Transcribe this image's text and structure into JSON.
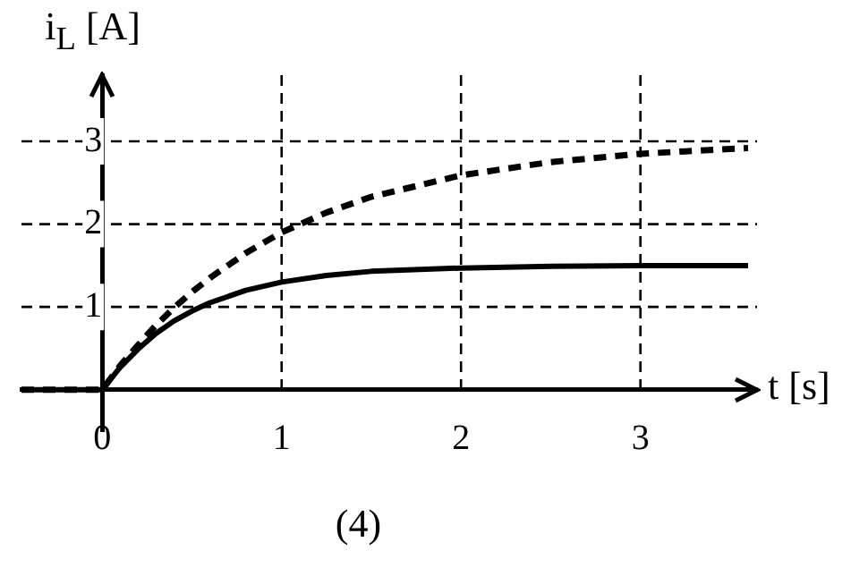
{
  "chart_data": {
    "type": "line",
    "xlabel": "t [s]",
    "ylabel": "i$_{L}$ [A]",
    "annotations": [
      "(4)"
    ],
    "x": [
      -0.45,
      0,
      0.1,
      0.2,
      0.3,
      0.4,
      0.5,
      0.6,
      0.8,
      1,
      1.25,
      1.5,
      2,
      2.5,
      3,
      3.6
    ],
    "series": [
      {
        "color": "#000000",
        "line_style": "solid",
        "values": [
          0,
          0,
          0.27,
          0.49,
          0.68,
          0.83,
          0.95,
          1.05,
          1.2,
          1.3,
          1.38,
          1.43,
          1.47,
          1.49,
          1.5,
          1.5
        ]
      },
      {
        "color": "#000000",
        "line_style": "dashed",
        "values": [
          0,
          0,
          0.29,
          0.54,
          0.78,
          0.99,
          1.18,
          1.35,
          1.65,
          1.9,
          2.14,
          2.33,
          2.59,
          2.75,
          2.85,
          2.92
        ]
      }
    ],
    "xlim": [
      -0.45,
      3.65
    ],
    "ylim": [
      -0.5,
      3.8
    ],
    "xticks": [
      0,
      1,
      2,
      3
    ],
    "yticks": [
      1,
      2,
      3
    ],
    "grid": true,
    "marker": "none",
    "legend": false
  }
}
